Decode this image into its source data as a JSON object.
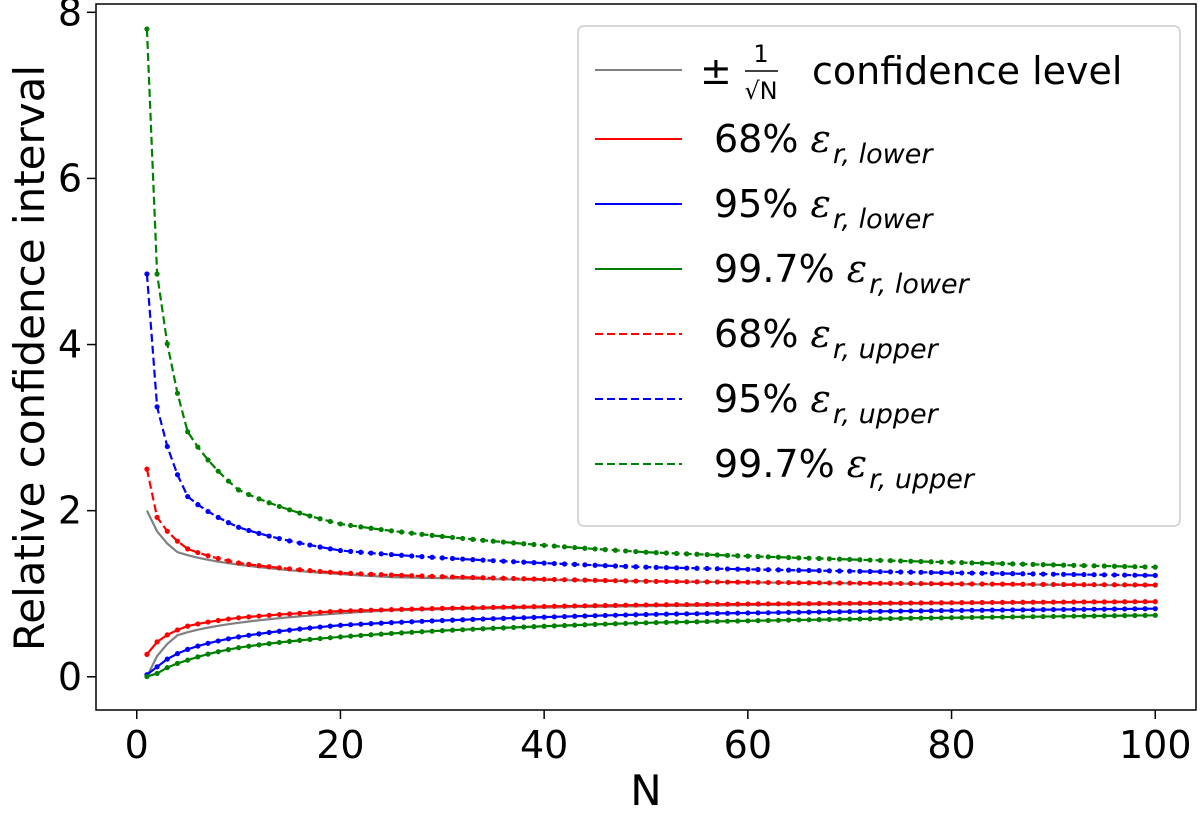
{
  "chart_data": {
    "type": "line",
    "title": "",
    "xlabel": "N",
    "ylabel": "Relative confidence interval",
    "xlim": [
      -4,
      104
    ],
    "ylim": [
      -0.4,
      8.1
    ],
    "xticks": [
      "0",
      "20",
      "40",
      "60",
      "80",
      "100"
    ],
    "yticks": [
      "0",
      "2",
      "4",
      "6",
      "8"
    ],
    "grid": false,
    "legend_position": "top-right",
    "n_range": [
      1,
      100
    ],
    "sqrt_band": {
      "name": "±1/√N confidence level",
      "label_prefix": "±",
      "label_numerator": "1",
      "label_denominator": "√N",
      "label_suffix": "confidence level",
      "color": "#808080",
      "sample_values_upper": [
        [
          1,
          2.0
        ],
        [
          4,
          1.5
        ],
        [
          25,
          1.2
        ],
        [
          100,
          1.1
        ]
      ],
      "sample_values_lower": [
        [
          1,
          0.0
        ],
        [
          4,
          0.5
        ],
        [
          25,
          0.8
        ],
        [
          100,
          0.9
        ]
      ]
    },
    "series": [
      {
        "name": "68% ε r,lower",
        "pct": "68%",
        "sym": "ε",
        "sub": "r, lower",
        "color": "#ff0000",
        "style": "solid",
        "values_at": [
          [
            1,
            0.27
          ],
          [
            2,
            0.42
          ],
          [
            5,
            0.61
          ],
          [
            10,
            0.71
          ],
          [
            20,
            0.79
          ],
          [
            50,
            0.865
          ],
          [
            100,
            0.905
          ]
        ]
      },
      {
        "name": "95% ε r,lower",
        "pct": "95%",
        "sym": "ε",
        "sub": "r, lower",
        "color": "#0000ff",
        "style": "solid",
        "values_at": [
          [
            1,
            0.025
          ],
          [
            2,
            0.12
          ],
          [
            5,
            0.33
          ],
          [
            10,
            0.48
          ],
          [
            20,
            0.62
          ],
          [
            50,
            0.75
          ],
          [
            100,
            0.82
          ]
        ]
      },
      {
        "name": "99.7% ε r,lower",
        "pct": "99.7%",
        "sym": "ε",
        "sub": "r, lower",
        "color": "#008000",
        "style": "solid",
        "values_at": [
          [
            1,
            0.003
          ],
          [
            2,
            0.04
          ],
          [
            5,
            0.2
          ],
          [
            10,
            0.35
          ],
          [
            20,
            0.48
          ],
          [
            50,
            0.65
          ],
          [
            100,
            0.74
          ]
        ]
      },
      {
        "name": "68% ε r,upper",
        "pct": "68%",
        "sym": "ε",
        "sub": "r, upper",
        "color": "#ff0000",
        "style": "dashed",
        "values_at": [
          [
            1,
            2.5
          ],
          [
            2,
            1.92
          ],
          [
            5,
            1.54
          ],
          [
            10,
            1.37
          ],
          [
            20,
            1.25
          ],
          [
            50,
            1.15
          ],
          [
            100,
            1.105
          ]
        ]
      },
      {
        "name": "95% ε r,upper",
        "pct": "95%",
        "sym": "ε",
        "sub": "r, upper",
        "color": "#0000ff",
        "style": "dashed",
        "values_at": [
          [
            1,
            4.85
          ],
          [
            2,
            3.25
          ],
          [
            5,
            2.17
          ],
          [
            10,
            1.8
          ],
          [
            20,
            1.52
          ],
          [
            50,
            1.32
          ],
          [
            100,
            1.22
          ]
        ]
      },
      {
        "name": "99.7% ε r,upper",
        "pct": "99.7%",
        "sym": "ε",
        "sub": "r, upper",
        "color": "#008000",
        "style": "dashed",
        "values_at": [
          [
            1,
            7.8
          ],
          [
            2,
            4.85
          ],
          [
            5,
            2.95
          ],
          [
            10,
            2.25
          ],
          [
            20,
            1.84
          ],
          [
            50,
            1.5
          ],
          [
            100,
            1.32
          ]
        ]
      }
    ]
  }
}
